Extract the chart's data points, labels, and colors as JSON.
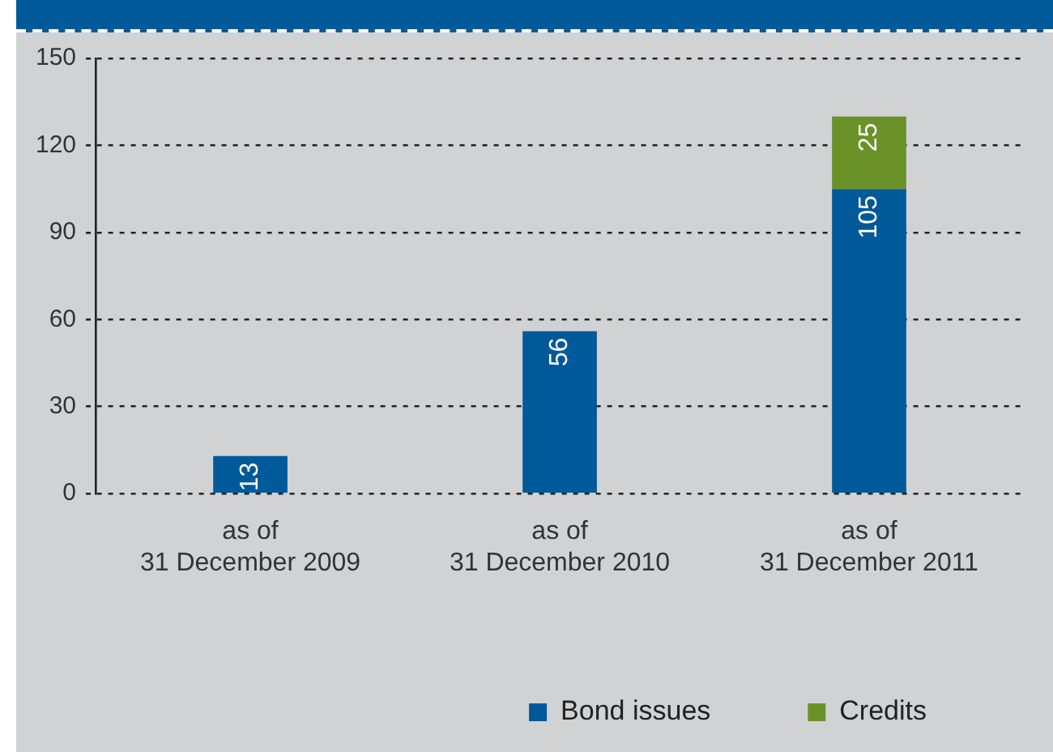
{
  "chart_data": {
    "type": "bar",
    "categories": [
      "as of\n31 December 2009",
      "as of\n31 December 2010",
      "as of\n31 December 2011"
    ],
    "series": [
      {
        "name": "Bond issues",
        "color": "#005a9a",
        "values": [
          13,
          56,
          105
        ]
      },
      {
        "name": "Credits",
        "color": "#6a9229",
        "values": [
          null,
          null,
          25
        ]
      }
    ],
    "stacked": true,
    "ylim": [
      0,
      150
    ],
    "yticks": [
      0,
      30,
      60,
      90,
      120,
      150
    ],
    "grid": "y",
    "legend": "bottom",
    "data_labels": true
  }
}
